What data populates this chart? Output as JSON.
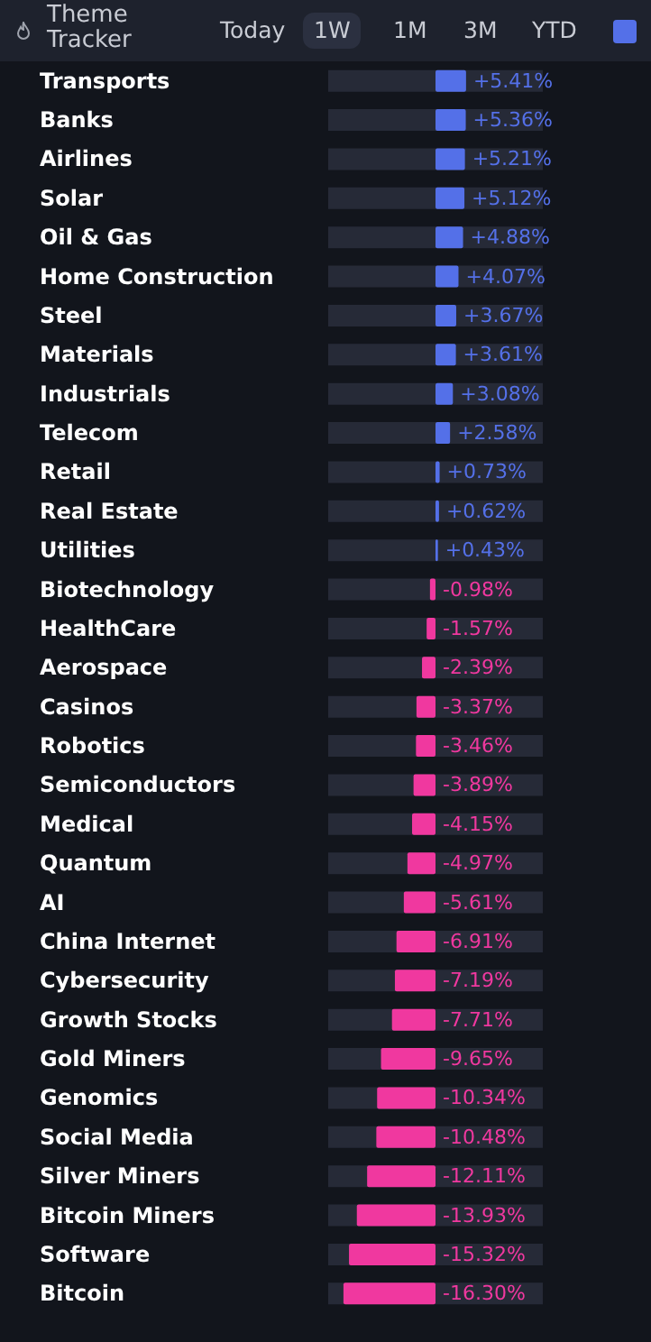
{
  "chart_data": {
    "type": "bar",
    "orientation": "horizontal",
    "title": "Theme Tracker",
    "annotations": [
      "Today",
      "1W",
      "1M",
      "3M",
      "YTD"
    ],
    "categories": [
      "Transports",
      "Banks",
      "Airlines",
      "Solar",
      "Oil & Gas",
      "Home Construction",
      "Steel",
      "Materials",
      "Industrials",
      "Telecom",
      "Retail",
      "Real Estate",
      "Utilities",
      "Biotechnology",
      "HealthCare",
      "Aerospace",
      "Casinos",
      "Robotics",
      "Semiconductors",
      "Medical",
      "Quantum",
      "AI",
      "China Internet",
      "Cybersecurity",
      "Growth Stocks",
      "Gold Miners",
      "Genomics",
      "Social Media",
      "Silver Miners",
      "Bitcoin Miners",
      "Software",
      "Bitcoin"
    ],
    "values": [
      5.41,
      5.36,
      5.21,
      5.12,
      4.88,
      4.07,
      3.67,
      3.61,
      3.08,
      2.58,
      0.73,
      0.62,
      0.43,
      -0.98,
      -1.57,
      -2.39,
      -3.37,
      -3.46,
      -3.89,
      -4.15,
      -4.97,
      -5.61,
      -6.91,
      -7.19,
      -7.71,
      -9.65,
      -10.34,
      -10.48,
      -12.11,
      -13.93,
      -15.32,
      -16.3
    ],
    "value_labels": [
      "+5.41%",
      "+5.36%",
      "+5.21%",
      "+5.12%",
      "+4.88%",
      "+4.07%",
      "+3.67%",
      "+3.61%",
      "+3.08%",
      "+2.58%",
      "+0.73%",
      "+0.62%",
      "+0.43%",
      "-0.98%",
      "-1.57%",
      "-2.39%",
      "-3.37%",
      "-3.46%",
      "-3.89%",
      "-4.15%",
      "-4.97%",
      "-5.61%",
      "-6.91%",
      "-7.19%",
      "-7.71%",
      "-9.65%",
      "-10.34%",
      "-10.48%",
      "-12.11%",
      "-13.93%",
      "-15.32%",
      "-16.30%"
    ],
    "colors": [
      "#5470e8",
      "#5470e8",
      "#5470e8",
      "#5470e8",
      "#5470e8",
      "#5470e8",
      "#5470e8",
      "#5470e8",
      "#5470e8",
      "#5470e8",
      "#5470e8",
      "#5470e8",
      "#5470e8",
      "#f0389f",
      "#f0389f",
      "#f0389f",
      "#f0389f",
      "#f0389f",
      "#f0389f",
      "#f0389f",
      "#f0389f",
      "#f0389f",
      "#f0389f",
      "#f0389f",
      "#f0389f",
      "#f0389f",
      "#f0389f",
      "#f0389f",
      "#f0389f",
      "#f0389f",
      "#f0389f",
      "#f0389f"
    ],
    "xlim": [
      -19,
      19
    ],
    "tick_labels": "y"
  }
}
